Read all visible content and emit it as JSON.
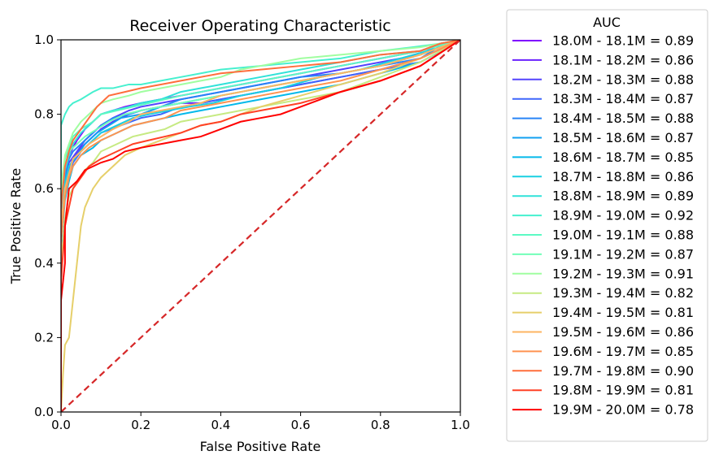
{
  "chart_data": {
    "type": "line",
    "title": "Receiver Operating Characteristic",
    "xlabel": "False Positive Rate",
    "ylabel": "True Positive Rate",
    "xlim": [
      0.0,
      1.0
    ],
    "ylim": [
      0.0,
      1.0
    ],
    "xticks": [
      "0.0",
      "0.2",
      "0.4",
      "0.6",
      "0.8",
      "1.0"
    ],
    "yticks": [
      "0.0",
      "0.2",
      "0.4",
      "0.6",
      "0.8",
      "1.0"
    ],
    "grid": false,
    "legend": {
      "title": "AUC",
      "placement": "outside-right"
    },
    "diagonal": {
      "name": "chance",
      "color": "#d62728",
      "style": "dashed",
      "x": [
        0,
        1
      ],
      "y": [
        0,
        1
      ]
    },
    "series": [
      {
        "label": "18.0M - 18.1M = 0.89",
        "color": "#7f00ff",
        "x": [
          0,
          0,
          0.005,
          0.01,
          0.02,
          0.03,
          0.04,
          0.06,
          0.08,
          0.1,
          0.13,
          0.16,
          0.2,
          0.25,
          0.3,
          0.35,
          0.4,
          0.45,
          0.5,
          0.55,
          0.6,
          0.65,
          0.7,
          0.8,
          0.9,
          0.95,
          1.0
        ],
        "y": [
          0,
          0.5,
          0.62,
          0.66,
          0.69,
          0.71,
          0.73,
          0.76,
          0.78,
          0.8,
          0.81,
          0.82,
          0.83,
          0.84,
          0.85,
          0.86,
          0.87,
          0.88,
          0.89,
          0.9,
          0.91,
          0.92,
          0.93,
          0.95,
          0.97,
          0.99,
          1.0
        ]
      },
      {
        "label": "18.1M - 18.2M = 0.86",
        "color": "#6a22fe",
        "x": [
          0,
          0,
          0.01,
          0.02,
          0.03,
          0.05,
          0.07,
          0.1,
          0.13,
          0.17,
          0.2,
          0.25,
          0.3,
          0.35,
          0.4,
          0.45,
          0.5,
          0.55,
          0.6,
          0.65,
          0.7,
          0.8,
          0.9,
          1.0
        ],
        "y": [
          0,
          0.45,
          0.6,
          0.65,
          0.68,
          0.71,
          0.73,
          0.76,
          0.78,
          0.8,
          0.81,
          0.82,
          0.83,
          0.83,
          0.84,
          0.85,
          0.86,
          0.87,
          0.88,
          0.89,
          0.9,
          0.92,
          0.95,
          1.0
        ]
      },
      {
        "label": "18.2M - 18.3M = 0.88",
        "color": "#5444fd",
        "x": [
          0,
          0,
          0.01,
          0.02,
          0.04,
          0.06,
          0.08,
          0.1,
          0.13,
          0.17,
          0.2,
          0.25,
          0.3,
          0.35,
          0.4,
          0.5,
          0.6,
          0.7,
          0.8,
          0.9,
          0.95,
          1.0
        ],
        "y": [
          0,
          0.5,
          0.63,
          0.67,
          0.7,
          0.73,
          0.75,
          0.77,
          0.79,
          0.81,
          0.82,
          0.83,
          0.84,
          0.85,
          0.86,
          0.88,
          0.9,
          0.92,
          0.94,
          0.96,
          0.99,
          1.0
        ]
      },
      {
        "label": "18.3M - 18.4M = 0.87",
        "color": "#3e66fb",
        "x": [
          0,
          0,
          0.01,
          0.02,
          0.03,
          0.05,
          0.08,
          0.1,
          0.15,
          0.2,
          0.25,
          0.3,
          0.35,
          0.4,
          0.5,
          0.6,
          0.7,
          0.8,
          0.9,
          0.97,
          1.0
        ],
        "y": [
          0,
          0.48,
          0.6,
          0.64,
          0.67,
          0.7,
          0.73,
          0.75,
          0.77,
          0.79,
          0.8,
          0.82,
          0.83,
          0.84,
          0.86,
          0.88,
          0.9,
          0.92,
          0.94,
          0.98,
          1.0
        ]
      },
      {
        "label": "18.4M - 18.5M = 0.88",
        "color": "#2884f6",
        "x": [
          0,
          0,
          0.01,
          0.02,
          0.03,
          0.05,
          0.07,
          0.1,
          0.13,
          0.17,
          0.2,
          0.25,
          0.3,
          0.4,
          0.5,
          0.6,
          0.7,
          0.8,
          0.9,
          0.96,
          1.0
        ],
        "y": [
          0,
          0.52,
          0.64,
          0.68,
          0.7,
          0.72,
          0.74,
          0.77,
          0.79,
          0.8,
          0.81,
          0.82,
          0.84,
          0.86,
          0.88,
          0.9,
          0.91,
          0.93,
          0.95,
          0.99,
          1.0
        ]
      },
      {
        "label": "18.5M - 18.6M = 0.87",
        "color": "#12a0f1",
        "x": [
          0,
          0,
          0.01,
          0.02,
          0.04,
          0.06,
          0.09,
          0.12,
          0.15,
          0.2,
          0.25,
          0.3,
          0.35,
          0.4,
          0.5,
          0.6,
          0.7,
          0.8,
          0.9,
          1.0
        ],
        "y": [
          0,
          0.5,
          0.62,
          0.66,
          0.69,
          0.72,
          0.75,
          0.77,
          0.79,
          0.8,
          0.82,
          0.83,
          0.84,
          0.85,
          0.87,
          0.89,
          0.91,
          0.93,
          0.96,
          1.0
        ]
      },
      {
        "label": "18.6M - 18.7M = 0.85",
        "color": "#04b9ea",
        "x": [
          0,
          0,
          0.01,
          0.02,
          0.03,
          0.05,
          0.08,
          0.1,
          0.14,
          0.18,
          0.22,
          0.26,
          0.3,
          0.35,
          0.4,
          0.5,
          0.6,
          0.7,
          0.8,
          0.9,
          1.0
        ],
        "y": [
          0,
          0.45,
          0.57,
          0.62,
          0.66,
          0.69,
          0.71,
          0.73,
          0.75,
          0.77,
          0.78,
          0.79,
          0.8,
          0.81,
          0.82,
          0.84,
          0.86,
          0.88,
          0.91,
          0.94,
          1.0
        ]
      },
      {
        "label": "18.7M - 18.8M = 0.86",
        "color": "#1ad0e2",
        "x": [
          0,
          0,
          0.01,
          0.02,
          0.04,
          0.06,
          0.08,
          0.1,
          0.14,
          0.18,
          0.22,
          0.27,
          0.32,
          0.38,
          0.45,
          0.55,
          0.65,
          0.75,
          0.85,
          0.95,
          1.0
        ],
        "y": [
          0,
          0.5,
          0.61,
          0.66,
          0.69,
          0.71,
          0.73,
          0.75,
          0.77,
          0.79,
          0.8,
          0.81,
          0.82,
          0.83,
          0.85,
          0.87,
          0.9,
          0.92,
          0.95,
          0.98,
          1.0
        ]
      },
      {
        "label": "18.8M - 18.9M = 0.89",
        "color": "#30e2d9",
        "x": [
          0,
          0,
          0.01,
          0.02,
          0.03,
          0.05,
          0.08,
          0.1,
          0.13,
          0.17,
          0.2,
          0.25,
          0.3,
          0.35,
          0.4,
          0.5,
          0.6,
          0.7,
          0.8,
          0.9,
          0.95,
          1.0
        ],
        "y": [
          0,
          0.55,
          0.65,
          0.69,
          0.72,
          0.75,
          0.78,
          0.8,
          0.81,
          0.82,
          0.83,
          0.84,
          0.86,
          0.87,
          0.88,
          0.9,
          0.92,
          0.94,
          0.96,
          0.97,
          0.99,
          1.0
        ]
      },
      {
        "label": "18.9M - 19.0M = 0.92",
        "color": "#46f0cf",
        "x": [
          0,
          0,
          0.01,
          0.02,
          0.03,
          0.05,
          0.08,
          0.1,
          0.13,
          0.17,
          0.2,
          0.25,
          0.3,
          0.35,
          0.4,
          0.5,
          0.6,
          0.7,
          0.8,
          0.88,
          0.95,
          1.0
        ],
        "y": [
          0,
          0.77,
          0.8,
          0.82,
          0.83,
          0.84,
          0.86,
          0.87,
          0.87,
          0.88,
          0.88,
          0.89,
          0.9,
          0.91,
          0.92,
          0.93,
          0.94,
          0.95,
          0.97,
          0.98,
          0.99,
          1.0
        ]
      },
      {
        "label": "19.0M - 19.1M = 0.88",
        "color": "#5cfac4",
        "x": [
          0,
          0,
          0.01,
          0.02,
          0.03,
          0.05,
          0.08,
          0.1,
          0.14,
          0.18,
          0.22,
          0.26,
          0.3,
          0.35,
          0.4,
          0.5,
          0.6,
          0.7,
          0.8,
          0.9,
          1.0
        ],
        "y": [
          0,
          0.6,
          0.68,
          0.71,
          0.74,
          0.76,
          0.78,
          0.8,
          0.81,
          0.82,
          0.83,
          0.84,
          0.85,
          0.86,
          0.87,
          0.89,
          0.91,
          0.93,
          0.95,
          0.97,
          1.0
        ]
      },
      {
        "label": "19.1M - 19.2M = 0.87",
        "color": "#72feb8",
        "x": [
          0,
          0,
          0.01,
          0.02,
          0.04,
          0.06,
          0.09,
          0.12,
          0.16,
          0.2,
          0.25,
          0.3,
          0.35,
          0.4,
          0.5,
          0.6,
          0.7,
          0.8,
          0.9,
          1.0
        ],
        "y": [
          0,
          0.58,
          0.66,
          0.7,
          0.72,
          0.74,
          0.76,
          0.78,
          0.8,
          0.81,
          0.82,
          0.83,
          0.84,
          0.85,
          0.87,
          0.89,
          0.91,
          0.93,
          0.96,
          1.0
        ]
      },
      {
        "label": "19.2M - 19.3M = 0.91",
        "color": "#a0fea0",
        "x": [
          0,
          0,
          0.01,
          0.02,
          0.03,
          0.05,
          0.08,
          0.1,
          0.13,
          0.17,
          0.2,
          0.25,
          0.3,
          0.35,
          0.4,
          0.45,
          0.5,
          0.55,
          0.6,
          0.7,
          0.8,
          0.9,
          1.0
        ],
        "y": [
          0,
          0.6,
          0.69,
          0.72,
          0.75,
          0.78,
          0.81,
          0.83,
          0.84,
          0.85,
          0.86,
          0.87,
          0.88,
          0.89,
          0.9,
          0.92,
          0.93,
          0.94,
          0.95,
          0.96,
          0.97,
          0.98,
          1.0
        ]
      },
      {
        "label": "19.3M - 19.4M = 0.82",
        "color": "#c6ea82",
        "x": [
          0,
          0,
          0.01,
          0.02,
          0.04,
          0.06,
          0.08,
          0.1,
          0.14,
          0.18,
          0.22,
          0.26,
          0.3,
          0.35,
          0.4,
          0.45,
          0.5,
          0.6,
          0.7,
          0.8,
          0.9,
          1.0
        ],
        "y": [
          0,
          0.4,
          0.52,
          0.58,
          0.62,
          0.65,
          0.67,
          0.7,
          0.72,
          0.74,
          0.75,
          0.76,
          0.78,
          0.79,
          0.8,
          0.81,
          0.82,
          0.84,
          0.86,
          0.9,
          0.94,
          1.0
        ]
      },
      {
        "label": "19.4M - 19.5M = 0.81",
        "color": "#e6cf6a",
        "x": [
          0,
          0.005,
          0.01,
          0.02,
          0.03,
          0.04,
          0.05,
          0.06,
          0.08,
          0.1,
          0.13,
          0.16,
          0.2,
          0.25,
          0.3,
          0.35,
          0.4,
          0.45,
          0.5,
          0.6,
          0.7,
          0.8,
          0.9,
          1.0
        ],
        "y": [
          0,
          0.1,
          0.18,
          0.2,
          0.3,
          0.4,
          0.5,
          0.55,
          0.6,
          0.63,
          0.66,
          0.69,
          0.71,
          0.73,
          0.75,
          0.77,
          0.78,
          0.8,
          0.82,
          0.85,
          0.88,
          0.91,
          0.95,
          1.0
        ]
      },
      {
        "label": "19.5M - 19.6M = 0.86",
        "color": "#fdb462",
        "x": [
          0,
          0,
          0.01,
          0.02,
          0.03,
          0.05,
          0.07,
          0.1,
          0.13,
          0.17,
          0.2,
          0.25,
          0.3,
          0.35,
          0.4,
          0.5,
          0.6,
          0.7,
          0.8,
          0.9,
          1.0
        ],
        "y": [
          0,
          0.5,
          0.6,
          0.64,
          0.68,
          0.7,
          0.72,
          0.74,
          0.76,
          0.78,
          0.8,
          0.81,
          0.82,
          0.83,
          0.85,
          0.87,
          0.89,
          0.91,
          0.93,
          0.96,
          1.0
        ]
      },
      {
        "label": "19.6M - 19.7M = 0.85",
        "color": "#ff9350",
        "x": [
          0,
          0,
          0.01,
          0.02,
          0.03,
          0.05,
          0.07,
          0.1,
          0.14,
          0.18,
          0.22,
          0.26,
          0.3,
          0.35,
          0.4,
          0.5,
          0.6,
          0.7,
          0.8,
          0.9,
          1.0
        ],
        "y": [
          0,
          0.46,
          0.58,
          0.63,
          0.66,
          0.69,
          0.71,
          0.73,
          0.75,
          0.77,
          0.78,
          0.79,
          0.81,
          0.82,
          0.83,
          0.85,
          0.87,
          0.89,
          0.92,
          0.95,
          1.0
        ]
      },
      {
        "label": "19.7M - 19.8M = 0.90",
        "color": "#ff6e3c",
        "x": [
          0,
          0,
          0.01,
          0.02,
          0.03,
          0.05,
          0.07,
          0.09,
          0.12,
          0.16,
          0.2,
          0.25,
          0.3,
          0.35,
          0.4,
          0.5,
          0.6,
          0.7,
          0.8,
          0.9,
          0.95,
          1.0
        ],
        "y": [
          0,
          0.55,
          0.66,
          0.7,
          0.73,
          0.76,
          0.79,
          0.82,
          0.85,
          0.86,
          0.87,
          0.88,
          0.89,
          0.9,
          0.91,
          0.92,
          0.93,
          0.94,
          0.96,
          0.97,
          0.99,
          1.0
        ]
      },
      {
        "label": "19.8M - 19.9M = 0.81",
        "color": "#ff4126",
        "x": [
          0,
          0,
          0.01,
          0.02,
          0.03,
          0.05,
          0.07,
          0.1,
          0.14,
          0.18,
          0.22,
          0.26,
          0.3,
          0.35,
          0.4,
          0.45,
          0.5,
          0.6,
          0.7,
          0.8,
          0.9,
          1.0
        ],
        "y": [
          0,
          0.35,
          0.5,
          0.55,
          0.6,
          0.63,
          0.66,
          0.68,
          0.7,
          0.72,
          0.73,
          0.74,
          0.75,
          0.77,
          0.78,
          0.8,
          0.81,
          0.83,
          0.86,
          0.89,
          0.93,
          1.0
        ]
      },
      {
        "label": "19.9M - 20.0M = 0.78",
        "color": "#ff0000",
        "x": [
          0,
          0,
          0.01,
          0.01,
          0.02,
          0.03,
          0.04,
          0.06,
          0.08,
          0.1,
          0.13,
          0.16,
          0.2,
          0.25,
          0.3,
          0.35,
          0.4,
          0.45,
          0.5,
          0.55,
          0.6,
          0.65,
          0.7,
          0.8,
          0.9,
          1.0
        ],
        "y": [
          0,
          0.3,
          0.4,
          0.5,
          0.6,
          0.61,
          0.62,
          0.65,
          0.66,
          0.67,
          0.68,
          0.7,
          0.71,
          0.72,
          0.73,
          0.74,
          0.76,
          0.78,
          0.79,
          0.8,
          0.82,
          0.84,
          0.86,
          0.89,
          0.93,
          1.0
        ]
      }
    ]
  }
}
